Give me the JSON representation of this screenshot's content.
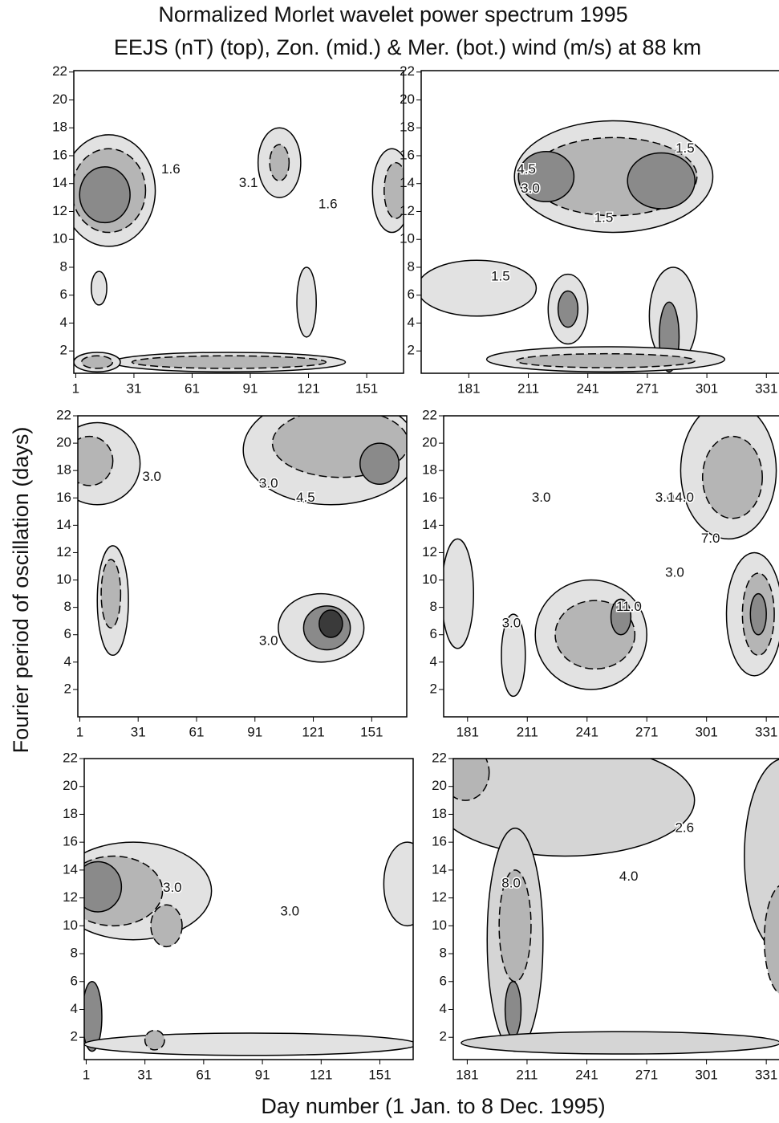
{
  "figure": {
    "title": "Normalized Morlet wavelet power spectrum 1995",
    "subtitle": "EEJS (nT) (top), Zon. (mid.) & Mer. (bot.) wind (m/s) at 88 km",
    "y_label": "Fourier period of oscillation (days)",
    "x_label": "Day number (1 Jan. to 8 Dec. 1995)"
  },
  "chart_data": [
    {
      "type": "contour",
      "xlim": [
        0,
        170
      ],
      "ylim": [
        0.4,
        22.1
      ],
      "xticks": [
        1,
        31,
        61,
        91,
        121,
        151
      ],
      "yticks": [
        2,
        4,
        6,
        8,
        10,
        12,
        14,
        16,
        18,
        20,
        22
      ],
      "levels": [
        1.6,
        3.1,
        4.6,
        6.1
      ],
      "colors": [
        "#e2e2e2",
        "#b5b5b5",
        "#8a8a8a",
        "#555555"
      ],
      "contours": [
        {
          "value": 1.6,
          "x": 18,
          "y": 13.5,
          "rx": 24,
          "ry": 4
        },
        {
          "value": 3.1,
          "x": 18,
          "y": 13.5,
          "rx": 19,
          "ry": 3
        },
        {
          "value": 4.6,
          "x": 16,
          "y": 13.2,
          "rx": 13,
          "ry": 2
        },
        {
          "value": 1.6,
          "x": 106,
          "y": 15.5,
          "rx": 11,
          "ry": 2.5
        },
        {
          "value": 3.1,
          "x": 106,
          "y": 15.5,
          "rx": 5,
          "ry": 1.3
        },
        {
          "value": 1.6,
          "x": 164,
          "y": 13.5,
          "rx": 10,
          "ry": 3
        },
        {
          "value": 3.1,
          "x": 166,
          "y": 13.5,
          "rx": 6,
          "ry": 2
        },
        {
          "value": 1.6,
          "x": 13,
          "y": 6.5,
          "rx": 4,
          "ry": 1.2
        },
        {
          "value": 1.6,
          "x": 120,
          "y": 5.5,
          "rx": 5,
          "ry": 2.5
        },
        {
          "value": 1.6,
          "x": 80,
          "y": 1.2,
          "rx": 60,
          "ry": 0.7
        },
        {
          "value": 3.1,
          "x": 80,
          "y": 1.2,
          "rx": 50,
          "ry": 0.45
        },
        {
          "value": 1.6,
          "x": 12,
          "y": 1.2,
          "rx": 12,
          "ry": 0.7
        },
        {
          "value": 3.1,
          "x": 12,
          "y": 1.2,
          "rx": 8,
          "ry": 0.45
        }
      ],
      "contour_labels": [
        {
          "text": "1.6",
          "x": 50,
          "y": 15
        },
        {
          "text": "3.1",
          "x": 90,
          "y": 14
        },
        {
          "text": "1.6",
          "x": 131,
          "y": 12.5
        }
      ]
    },
    {
      "type": "contour",
      "xlim": [
        157,
        341
      ],
      "ylim": [
        0.4,
        22.1
      ],
      "xticks": [
        181,
        211,
        241,
        271,
        301,
        331
      ],
      "yticks": [
        2,
        4,
        6,
        8,
        10,
        12,
        14,
        16,
        18,
        20,
        22
      ],
      "levels": [
        1.5,
        3.0,
        4.5,
        6.0
      ],
      "colors": [
        "#e2e2e2",
        "#b5b5b5",
        "#8a8a8a",
        "#555555"
      ],
      "contours": [
        {
          "value": 1.5,
          "x": 254,
          "y": 14.5,
          "rx": 50,
          "ry": 4
        },
        {
          "value": 3.0,
          "x": 254,
          "y": 14.5,
          "rx": 42,
          "ry": 2.8
        },
        {
          "value": 4.5,
          "x": 220,
          "y": 14.5,
          "rx": 14,
          "ry": 1.8
        },
        {
          "value": 4.5,
          "x": 278,
          "y": 14.2,
          "rx": 17,
          "ry": 2
        },
        {
          "value": 1.5,
          "x": 185,
          "y": 6.5,
          "rx": 30,
          "ry": 2
        },
        {
          "value": 1.5,
          "x": 231,
          "y": 5,
          "rx": 10,
          "ry": 2.5
        },
        {
          "value": 4.5,
          "x": 231,
          "y": 5,
          "rx": 5,
          "ry": 1.3
        },
        {
          "value": 1.5,
          "x": 284,
          "y": 4.5,
          "rx": 12,
          "ry": 3.5
        },
        {
          "value": 4.5,
          "x": 282,
          "y": 3,
          "rx": 5,
          "ry": 2.5
        },
        {
          "value": 1.5,
          "x": 250,
          "y": 1.4,
          "rx": 60,
          "ry": 0.9
        },
        {
          "value": 3.0,
          "x": 250,
          "y": 1.3,
          "rx": 45,
          "ry": 0.5
        }
      ],
      "contour_labels": [
        {
          "text": "1.5",
          "x": 290,
          "y": 16.5
        },
        {
          "text": "4.5",
          "x": 210,
          "y": 15
        },
        {
          "text": "3.0",
          "x": 212,
          "y": 13.6
        },
        {
          "text": "1.5",
          "x": 249,
          "y": 11.5
        },
        {
          "text": "1.5",
          "x": 197,
          "y": 7.3
        }
      ]
    },
    {
      "type": "contour",
      "xlim": [
        0,
        169
      ],
      "ylim": [
        0,
        22
      ],
      "xticks": [
        1,
        31,
        61,
        91,
        121,
        151
      ],
      "yticks": [
        2,
        4,
        6,
        8,
        10,
        12,
        14,
        16,
        18,
        20,
        22
      ],
      "levels": [
        3.0,
        4.5,
        6.0,
        7.5
      ],
      "colors": [
        "#e2e2e2",
        "#b5b5b5",
        "#8a8a8a",
        "#3a3a3a"
      ],
      "contours": [
        {
          "value": 3.0,
          "x": 10,
          "y": 18.5,
          "rx": 22,
          "ry": 3
        },
        {
          "value": 4.5,
          "x": 6,
          "y": 18.7,
          "rx": 12,
          "ry": 1.8
        },
        {
          "value": 3.0,
          "x": 130,
          "y": 19.5,
          "rx": 45,
          "ry": 4
        },
        {
          "value": 4.5,
          "x": 135,
          "y": 20,
          "rx": 35,
          "ry": 2.5
        },
        {
          "value": 6.0,
          "x": 155,
          "y": 18.5,
          "rx": 10,
          "ry": 1.5
        },
        {
          "value": 3.0,
          "x": 18,
          "y": 8.5,
          "rx": 8,
          "ry": 4
        },
        {
          "value": 4.5,
          "x": 17,
          "y": 9,
          "rx": 5,
          "ry": 2.5
        },
        {
          "value": 3.0,
          "x": 125,
          "y": 6.5,
          "rx": 22,
          "ry": 2.5
        },
        {
          "value": 6.0,
          "x": 128,
          "y": 6.5,
          "rx": 12,
          "ry": 1.6
        },
        {
          "value": 7.5,
          "x": 130,
          "y": 6.8,
          "rx": 6,
          "ry": 1
        }
      ],
      "contour_labels": [
        {
          "text": "3.0",
          "x": 38,
          "y": 17.5
        },
        {
          "text": "3.0",
          "x": 98,
          "y": 17
        },
        {
          "text": "4.5",
          "x": 117,
          "y": 16
        },
        {
          "text": "3.0",
          "x": 98,
          "y": 5.5
        }
      ]
    },
    {
      "type": "contour",
      "xlim": [
        169,
        341
      ],
      "ylim": [
        0,
        22
      ],
      "xticks": [
        181,
        211,
        241,
        271,
        301,
        331
      ],
      "yticks": [
        2,
        4,
        6,
        8,
        10,
        12,
        14,
        16,
        18,
        20,
        22
      ],
      "levels": [
        3.0,
        7.0,
        11.0,
        14.0
      ],
      "colors": [
        "#e2e2e2",
        "#b5b5b5",
        "#8a8a8a",
        "#3a3a3a"
      ],
      "contours": [
        {
          "value": 3.0,
          "x": 312,
          "y": 18,
          "rx": 24,
          "ry": 5
        },
        {
          "value": 7.0,
          "x": 314,
          "y": 17.5,
          "rx": 15,
          "ry": 3
        },
        {
          "value": 3.0,
          "x": 243,
          "y": 6,
          "rx": 28,
          "ry": 4
        },
        {
          "value": 7.0,
          "x": 245,
          "y": 6,
          "rx": 20,
          "ry": 2.5
        },
        {
          "value": 11.0,
          "x": 258,
          "y": 7.3,
          "rx": 5,
          "ry": 1.3
        },
        {
          "value": 3.0,
          "x": 204,
          "y": 4.5,
          "rx": 6,
          "ry": 3
        },
        {
          "value": 3.0,
          "x": 325,
          "y": 7.5,
          "rx": 14,
          "ry": 4.5
        },
        {
          "value": 7.0,
          "x": 327,
          "y": 7.5,
          "rx": 8,
          "ry": 3
        },
        {
          "value": 11.0,
          "x": 327,
          "y": 7.5,
          "rx": 4,
          "ry": 1.5
        },
        {
          "value": 3.0,
          "x": 176,
          "y": 9,
          "rx": 8,
          "ry": 4
        }
      ],
      "contour_labels": [
        {
          "text": "3.0",
          "x": 218,
          "y": 16
        },
        {
          "text": "3.0",
          "x": 280,
          "y": 16
        },
        {
          "text": "14.0",
          "x": 288,
          "y": 16
        },
        {
          "text": "7.0",
          "x": 303,
          "y": 13
        },
        {
          "text": "3.0",
          "x": 285,
          "y": 10.5
        },
        {
          "text": "3.0",
          "x": 203,
          "y": 6.8
        },
        {
          "text": "11.0",
          "x": 262,
          "y": 8
        }
      ]
    },
    {
      "type": "contour",
      "xlim": [
        0,
        168
      ],
      "ylim": [
        0.4,
        22
      ],
      "xticks": [
        1,
        31,
        61,
        91,
        121,
        151
      ],
      "yticks": [
        2,
        4,
        6,
        8,
        10,
        12,
        14,
        16,
        18,
        20,
        22
      ],
      "levels": [
        3.0,
        4.5,
        6.0,
        7.5
      ],
      "colors": [
        "#e2e2e2",
        "#b5b5b5",
        "#8a8a8a",
        "#222222"
      ],
      "contours": [
        {
          "value": 3.0,
          "x": 25,
          "y": 12.5,
          "rx": 40,
          "ry": 3.5
        },
        {
          "value": 4.5,
          "x": 15,
          "y": 12.5,
          "rx": 25,
          "ry": 2.5
        },
        {
          "value": 6.0,
          "x": 7,
          "y": 12.8,
          "rx": 12,
          "ry": 1.8
        },
        {
          "value": 4.5,
          "x": 42,
          "y": 10,
          "rx": 8,
          "ry": 1.5
        },
        {
          "value": 3.0,
          "x": 165,
          "y": 13,
          "rx": 12,
          "ry": 3
        },
        {
          "value": 6.0,
          "x": 4,
          "y": 3.5,
          "rx": 5,
          "ry": 2.5
        },
        {
          "value": 3.0,
          "x": 85,
          "y": 1.5,
          "rx": 85,
          "ry": 0.8
        },
        {
          "value": 4.5,
          "x": 36,
          "y": 1.8,
          "rx": 5,
          "ry": 0.7
        }
      ],
      "contour_labels": [
        {
          "text": "3.0",
          "x": 45,
          "y": 12.7
        },
        {
          "text": "3.0",
          "x": 105,
          "y": 11
        }
      ]
    },
    {
      "type": "contour",
      "xlim": [
        174,
        341
      ],
      "ylim": [
        0.4,
        22
      ],
      "xticks": [
        181,
        211,
        241,
        271,
        301,
        331
      ],
      "yticks": [
        2,
        4,
        6,
        8,
        10,
        12,
        14,
        16,
        18,
        20,
        22
      ],
      "levels": [
        2.6,
        4.0,
        8.0,
        11.0
      ],
      "colors": [
        "#d5d5d5",
        "#b5b5b5",
        "#8a8a8a",
        "#3a3a3a"
      ],
      "contours": [
        {
          "value": 2.6,
          "x": 230,
          "y": 19,
          "rx": 65,
          "ry": 4
        },
        {
          "value": 2.6,
          "x": 205,
          "y": 9,
          "rx": 14,
          "ry": 8
        },
        {
          "value": 4.0,
          "x": 205,
          "y": 10,
          "rx": 8,
          "ry": 4
        },
        {
          "value": 8.0,
          "x": 204,
          "y": 4,
          "rx": 4,
          "ry": 2
        },
        {
          "value": 2.6,
          "x": 340,
          "y": 15,
          "rx": 20,
          "ry": 7
        },
        {
          "value": 4.0,
          "x": 340,
          "y": 9,
          "rx": 10,
          "ry": 4
        },
        {
          "value": 4.0,
          "x": 180,
          "y": 21,
          "rx": 12,
          "ry": 2
        },
        {
          "value": 2.6,
          "x": 258,
          "y": 1.6,
          "rx": 80,
          "ry": 0.8
        }
      ],
      "contour_labels": [
        {
          "text": "2.6",
          "x": 290,
          "y": 17
        },
        {
          "text": "4.0",
          "x": 262,
          "y": 13.5
        },
        {
          "text": "8.0",
          "x": 203,
          "y": 13
        }
      ]
    }
  ]
}
